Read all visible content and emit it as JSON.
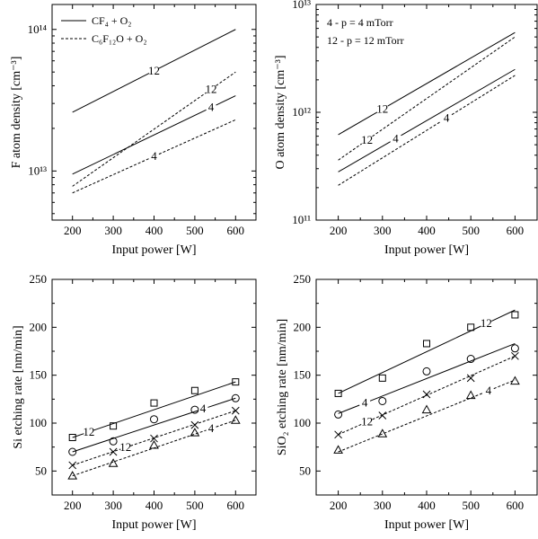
{
  "chart_data": [
    {
      "type": "line",
      "x": [
        200,
        600
      ],
      "xlabel": "Input power [W]",
      "ylabel": "F atom density [cm⁻³]",
      "xlim": [
        150,
        650
      ],
      "ylim": [
        4500000000000.0,
        150000000000000.0
      ],
      "yscale": "log",
      "xticks": [
        "200",
        "300",
        "400",
        "500",
        "600"
      ],
      "yticks": [
        {
          "value": 10000000000000.0,
          "label": "10¹³"
        },
        {
          "value": 100000000000000.0,
          "label": "10¹⁴"
        }
      ],
      "legend": {
        "position": "top-left",
        "entries": [
          {
            "label": "CF₄ + O₂",
            "style": "solid"
          },
          {
            "label": "C₆F₁₂O + O₂",
            "style": "dashed"
          }
        ]
      },
      "series": [
        {
          "style": "solid",
          "label": "12",
          "values": [
            26000000000000.0,
            100000000000000.0
          ],
          "label_at": 400
        },
        {
          "style": "solid",
          "label": "4",
          "values": [
            9500000000000.0,
            34000000000000.0
          ],
          "label_at": 540
        },
        {
          "style": "dashed",
          "label": "12",
          "values": [
            7800000000000.0,
            50000000000000.0
          ],
          "label_at": 540
        },
        {
          "style": "dashed",
          "label": "4",
          "values": [
            7000000000000.0,
            23000000000000.0
          ],
          "label_at": 400
        }
      ]
    },
    {
      "type": "line",
      "x": [
        200,
        600
      ],
      "xlabel": "Input power [W]",
      "ylabel": "O atom density [cm⁻³]",
      "xlim": [
        150,
        650
      ],
      "ylim": [
        100000000000.0,
        10000000000000.0
      ],
      "yscale": "log",
      "xticks": [
        "200",
        "300",
        "400",
        "500",
        "600"
      ],
      "yticks": [
        {
          "value": 100000000000.0,
          "label": "10¹¹"
        },
        {
          "value": 1000000000000.0,
          "label": "10¹²"
        },
        {
          "value": 10000000000000.0,
          "label": "10¹³"
        }
      ],
      "legend": {
        "position": "top-left",
        "entries": [
          {
            "label": "4   - p = 4 mTorr"
          },
          {
            "label": "12 - p = 12 mTorr"
          }
        ]
      },
      "series": [
        {
          "style": "solid",
          "label": "12",
          "values": [
            620000000000.0,
            5500000000000.0
          ],
          "label_at": 300
        },
        {
          "style": "dashed",
          "label": "12",
          "values": [
            360000000000.0,
            5000000000000.0
          ],
          "label_at": 265
        },
        {
          "style": "solid",
          "label": "4",
          "values": [
            280000000000.0,
            2500000000000.0
          ],
          "label_at": 330
        },
        {
          "style": "dashed",
          "label": "4",
          "values": [
            210000000000.0,
            2200000000000.0
          ],
          "label_at": 445
        }
      ]
    },
    {
      "type": "scatter",
      "x": [
        200,
        300,
        400,
        500,
        600
      ],
      "xlabel": "Input power [W]",
      "ylabel": "Si etching rate [nm/min]",
      "xlim": [
        150,
        650
      ],
      "ylim": [
        25,
        250
      ],
      "yscale": "linear",
      "xticks": [
        "200",
        "300",
        "400",
        "500",
        "600"
      ],
      "yticks": [
        {
          "value": 50,
          "label": "50"
        },
        {
          "value": 100,
          "label": "100"
        },
        {
          "value": 150,
          "label": "150"
        },
        {
          "value": 200,
          "label": "200"
        },
        {
          "value": 250,
          "label": "250"
        }
      ],
      "series": [
        {
          "marker": "square",
          "style": "solid",
          "label": "12",
          "values": [
            85,
            97,
            121,
            134,
            143
          ],
          "fit": [
            85,
            143
          ],
          "label_at": 240
        },
        {
          "marker": "circle",
          "style": "solid",
          "label": "4",
          "values": [
            70,
            81,
            104,
            114,
            126
          ],
          "fit": [
            70,
            126
          ],
          "label_at": 520
        },
        {
          "marker": "cross",
          "style": "dashed",
          "label": "12",
          "values": [
            56,
            70,
            84,
            98,
            113
          ],
          "fit": [
            56,
            113
          ],
          "label_at": 330
        },
        {
          "marker": "triangle",
          "style": "dashed",
          "label": "4",
          "values": [
            45,
            58,
            77,
            90,
            103
          ],
          "fit": [
            45,
            103
          ],
          "label_at": 540
        }
      ]
    },
    {
      "type": "scatter",
      "x": [
        200,
        300,
        400,
        500,
        600
      ],
      "xlabel": "Input power [W]",
      "ylabel": "SiO₂ etching rate [nm/min]",
      "xlim": [
        150,
        650
      ],
      "ylim": [
        25,
        250
      ],
      "yscale": "linear",
      "xticks": [
        "200",
        "300",
        "400",
        "500",
        "600"
      ],
      "yticks": [
        {
          "value": 50,
          "label": "50"
        },
        {
          "value": 100,
          "label": "100"
        },
        {
          "value": 150,
          "label": "150"
        },
        {
          "value": 200,
          "label": "200"
        },
        {
          "value": 250,
          "label": "250"
        }
      ],
      "series": [
        {
          "marker": "square",
          "style": "solid",
          "label": "12",
          "values": [
            131,
            147,
            183,
            200,
            213
          ],
          "fit": [
            131,
            218
          ],
          "label_at": 535
        },
        {
          "marker": "circle",
          "style": "solid",
          "label": "4",
          "values": [
            109,
            123,
            154,
            167,
            178
          ],
          "fit": [
            110,
            183
          ],
          "label_at": 260
        },
        {
          "marker": "cross",
          "style": "dashed",
          "label": "12",
          "values": [
            88,
            108,
            130,
            147,
            170
          ],
          "fit": [
            88,
            170
          ],
          "label_at": 265
        },
        {
          "marker": "triangle",
          "style": "dashed",
          "label": "4",
          "values": [
            72,
            89,
            114,
            129,
            144
          ],
          "fit": [
            70,
            145
          ],
          "label_at": 540
        }
      ]
    }
  ]
}
